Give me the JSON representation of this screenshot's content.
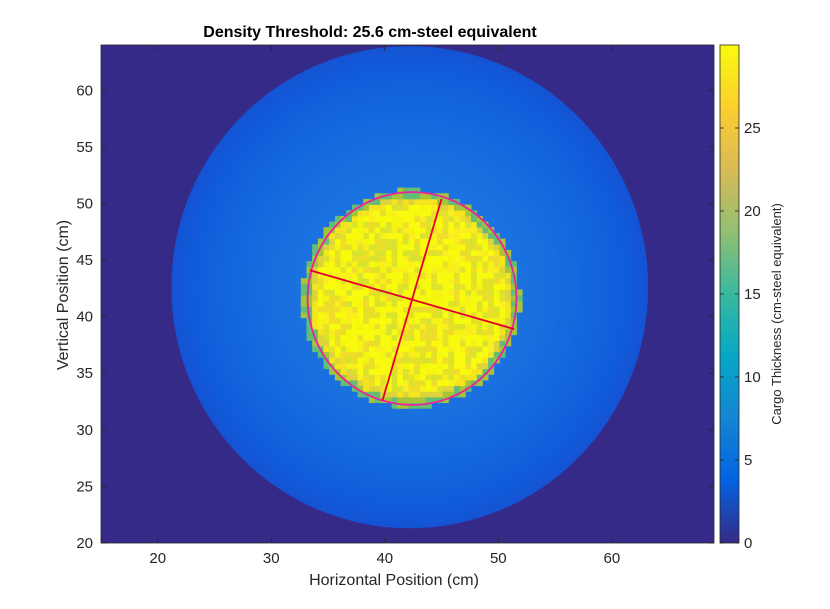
{
  "chart_data": {
    "type": "heatmap",
    "title": "Density Threshold: 25.6 cm-steel equivalent",
    "xlabel": "Horizontal Position (cm)",
    "ylabel": "Vertical Position (cm)",
    "xlim": [
      15,
      69
    ],
    "ylim": [
      20,
      64
    ],
    "xticks": [
      20,
      30,
      40,
      50,
      60
    ],
    "yticks": [
      20,
      25,
      30,
      35,
      40,
      45,
      50,
      55,
      60
    ],
    "colorbar": {
      "label": "Cargo Thickness (cm-steel equivalent)",
      "range": [
        0,
        30
      ],
      "ticks": [
        0,
        5,
        10,
        15,
        20,
        25
      ],
      "colormap": "parula"
    },
    "background_value": 0.5,
    "outer_disk": {
      "center": [
        42.2,
        42.6
      ],
      "radius_x": 21.0,
      "radius_y": 21.3,
      "value": 6
    },
    "inner_dense_region": {
      "center": [
        42.3,
        41.6
      ],
      "radius": 9.2,
      "value": 29,
      "speckle_values": [
        22,
        27
      ]
    },
    "fitted_ellipse": {
      "center": [
        42.4,
        41.6
      ],
      "radius_x": 9.2,
      "radius_y": 9.4,
      "color": "#e8249b"
    },
    "axis_lines": [
      {
        "from": [
          33.4,
          44.1
        ],
        "to": [
          51.4,
          38.9
        ],
        "color": "#e4002b"
      },
      {
        "from": [
          45.0,
          50.4
        ],
        "to": [
          39.8,
          32.6
        ],
        "color": "#e4002b"
      }
    ],
    "colors": {
      "background": "#352a87",
      "outer_disk_edge": "#0f5cdd",
      "outer_disk_center": "#1a74e0",
      "dense": "#f9fb0e",
      "magenta_ellipse": "#e8249b",
      "red_axes": "#e4002b"
    }
  }
}
